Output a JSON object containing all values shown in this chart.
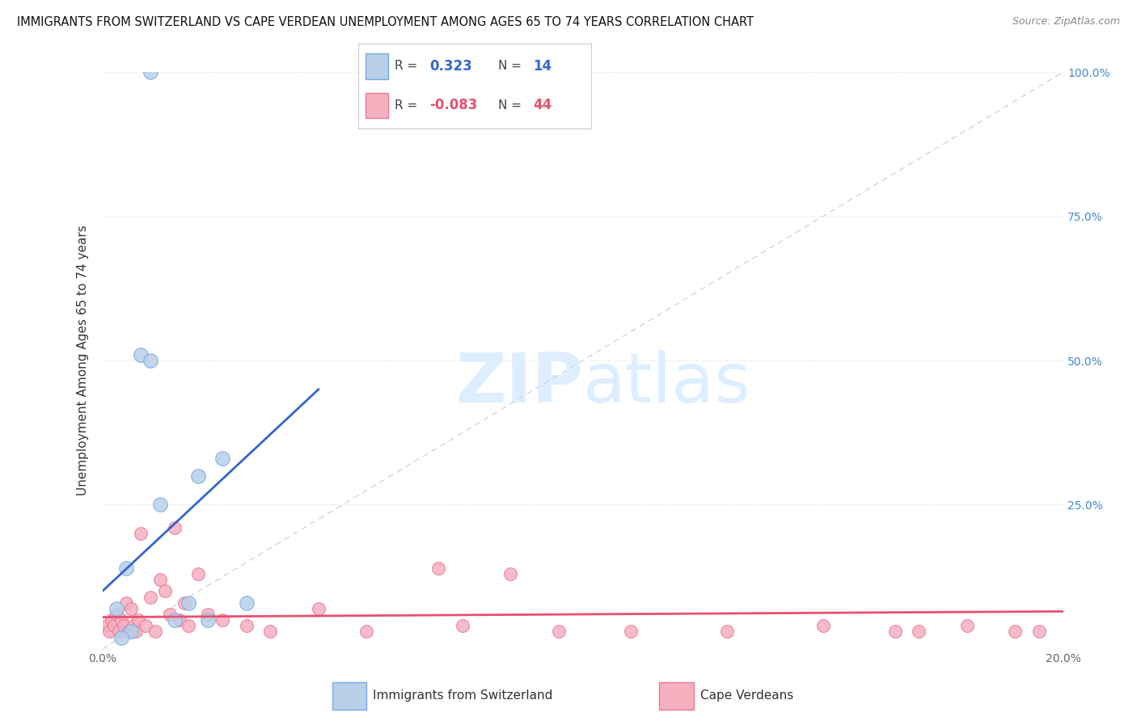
{
  "title": "IMMIGRANTS FROM SWITZERLAND VS CAPE VERDEAN UNEMPLOYMENT AMONG AGES 65 TO 74 YEARS CORRELATION CHART",
  "source": "Source: ZipAtlas.com",
  "ylabel": "Unemployment Among Ages 65 to 74 years",
  "xlim": [
    0.0,
    20.0
  ],
  "ylim": [
    0.0,
    100.0
  ],
  "xticks": [
    0,
    5,
    10,
    15,
    20
  ],
  "yticks": [
    0,
    25,
    50,
    75,
    100
  ],
  "xtick_labels": [
    "0.0%",
    "",
    "",
    "",
    "20.0%"
  ],
  "swiss_R": 0.323,
  "swiss_N": 14,
  "cv_R": -0.083,
  "cv_N": 44,
  "swiss_color": "#b8d0ea",
  "swiss_edge_color": "#7aaadd",
  "cv_color": "#f5b0c0",
  "cv_edge_color": "#e87898",
  "swiss_line_color": "#3366cc",
  "cv_line_color": "#e85070",
  "ref_line_color": "#c8d8e8",
  "watermark_color": "#ddeeff",
  "swiss_x": [
    1.0,
    0.5,
    0.8,
    2.5,
    1.5,
    2.0,
    1.2,
    0.3,
    0.6,
    1.0,
    1.8,
    2.2,
    3.0,
    0.4
  ],
  "swiss_y": [
    100.0,
    14.0,
    51.0,
    33.0,
    5.0,
    30.0,
    25.0,
    7.0,
    3.0,
    50.0,
    8.0,
    5.0,
    8.0,
    2.0
  ],
  "cv_x": [
    0.1,
    0.15,
    0.2,
    0.25,
    0.3,
    0.35,
    0.4,
    0.45,
    0.5,
    0.55,
    0.6,
    0.65,
    0.7,
    0.75,
    0.8,
    0.9,
    1.0,
    1.1,
    1.2,
    1.3,
    1.4,
    1.5,
    1.6,
    1.7,
    1.8,
    2.0,
    2.2,
    2.5,
    3.0,
    3.5,
    4.5,
    5.5,
    7.0,
    7.5,
    8.5,
    9.5,
    11.0,
    13.0,
    15.0,
    16.5,
    17.0,
    18.0,
    19.0,
    19.5
  ],
  "cv_y": [
    4.0,
    3.0,
    5.0,
    4.0,
    6.0,
    3.0,
    5.0,
    4.0,
    8.0,
    3.0,
    7.0,
    4.0,
    3.0,
    5.0,
    20.0,
    4.0,
    9.0,
    3.0,
    12.0,
    10.0,
    6.0,
    21.0,
    5.0,
    8.0,
    4.0,
    13.0,
    6.0,
    5.0,
    4.0,
    3.0,
    7.0,
    3.0,
    14.0,
    4.0,
    13.0,
    3.0,
    3.0,
    3.0,
    4.0,
    3.0,
    3.0,
    4.0,
    3.0,
    3.0
  ]
}
